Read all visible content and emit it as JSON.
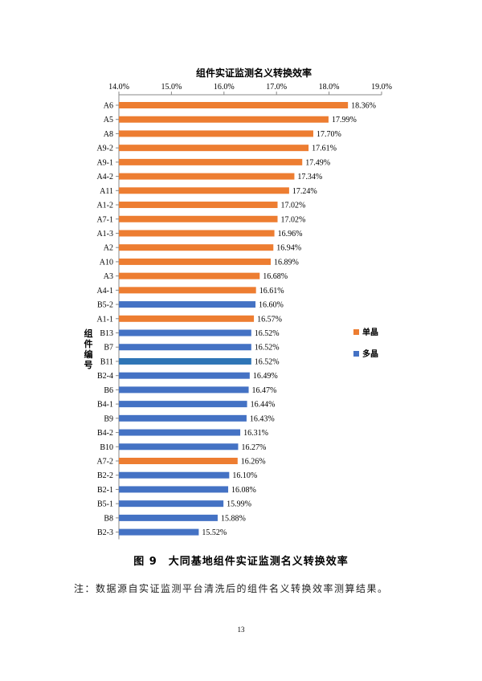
{
  "chart_data": {
    "type": "bar",
    "orientation": "horizontal",
    "title": "组件实证监测名义转换效率",
    "ylabel": "组件编号",
    "xlim": [
      14.0,
      19.0
    ],
    "xticks": [
      "14.0%",
      "15.0%",
      "16.0%",
      "17.0%",
      "18.0%",
      "19.0%"
    ],
    "x_axis_position": "top",
    "grid": false,
    "legend_position": "right",
    "legend": [
      {
        "name": "单晶",
        "color": "#ED7D31"
      },
      {
        "name": "多晶",
        "color": "#4472C4"
      }
    ],
    "categories": [
      "A6",
      "A5",
      "A8",
      "A9-2",
      "A9-1",
      "A4-2",
      "A11",
      "A1-2",
      "A7-1",
      "A1-3",
      "A2",
      "A10",
      "A3",
      "A4-1",
      "B5-2",
      "A1-1",
      "B13",
      "B7",
      "B11",
      "B2-4",
      "B6",
      "B4-1",
      "B9",
      "B4-2",
      "B10",
      "A7-2",
      "B2-2",
      "B2-1",
      "B5-1",
      "B8",
      "B2-3"
    ],
    "values": [
      18.36,
      17.99,
      17.7,
      17.61,
      17.49,
      17.34,
      17.24,
      17.02,
      17.02,
      16.96,
      16.94,
      16.89,
      16.68,
      16.61,
      16.6,
      16.57,
      16.52,
      16.52,
      16.52,
      16.49,
      16.47,
      16.44,
      16.43,
      16.31,
      16.27,
      16.26,
      16.1,
      16.08,
      15.99,
      15.88,
      15.52
    ],
    "value_labels": [
      "18.36%",
      "17.99%",
      "17.70%",
      "17.61%",
      "17.49%",
      "17.34%",
      "17.24%",
      "17.02%",
      "17.02%",
      "16.96%",
      "16.94%",
      "16.89%",
      "16.68%",
      "16.61%",
      "16.60%",
      "16.57%",
      "16.52%",
      "16.52%",
      "16.52%",
      "16.49%",
      "16.47%",
      "16.44%",
      "16.43%",
      "16.31%",
      "16.27%",
      "16.26%",
      "16.10%",
      "16.08%",
      "15.99%",
      "15.88%",
      "15.52%"
    ],
    "series_by_bar": [
      "单晶",
      "单晶",
      "单晶",
      "单晶",
      "单晶",
      "单晶",
      "单晶",
      "单晶",
      "单晶",
      "单晶",
      "单晶",
      "单晶",
      "单晶",
      "单晶",
      "多晶",
      "单晶",
      "多晶",
      "多晶",
      "多晶",
      "多晶",
      "多晶",
      "多晶",
      "多晶",
      "多晶",
      "多晶",
      "单晶",
      "多晶",
      "多晶",
      "多晶",
      "多晶",
      "多晶"
    ],
    "bar_colors": {
      "单晶": "#ED7D31",
      "多晶": "#4472C4",
      "highlight": "#2E75B6"
    },
    "highlighted_category": "B11"
  },
  "caption": "图 9　大同基地组件实证监测名义转换效率",
  "note": "注：数据源自实证监测平台清洗后的组件名义转换效率测算结果。",
  "page_number": "13"
}
